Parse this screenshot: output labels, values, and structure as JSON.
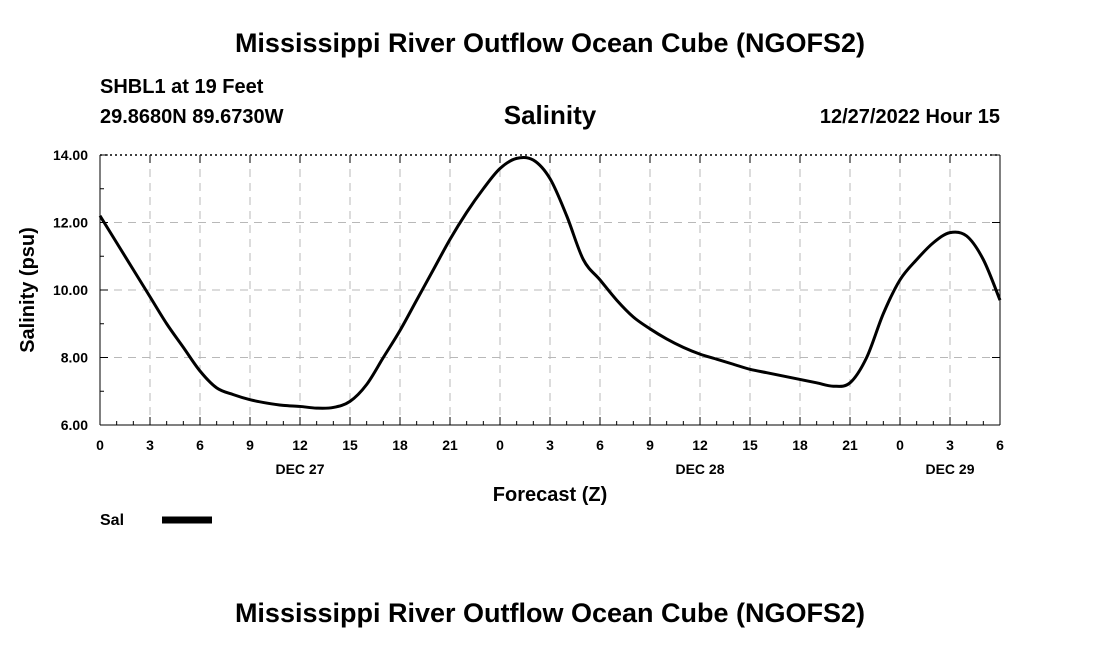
{
  "page": {
    "title": "Mississippi River Outflow Ocean Cube (NGOFS2)",
    "title_repeat": "Mississippi River Outflow Ocean Cube (NGOFS2)",
    "station": "SHBL1 at 19 Feet",
    "coords": "29.8680N  89.6730W",
    "plot_title": "Salinity",
    "timestamp": "12/27/2022 Hour 15"
  },
  "chart_data": {
    "type": "line",
    "title": "Salinity",
    "xlabel": "Forecast (Z)",
    "ylabel": "Salinity (psu)",
    "xlim": [
      0,
      54
    ],
    "ylim": [
      6,
      14
    ],
    "grid": true,
    "x_ticks": [
      0,
      3,
      6,
      9,
      12,
      15,
      18,
      21,
      24,
      27,
      30,
      33,
      36,
      39,
      42,
      45,
      48,
      51,
      54
    ],
    "x_tick_labels": [
      "0",
      "3",
      "6",
      "9",
      "12",
      "15",
      "18",
      "21",
      "0",
      "3",
      "6",
      "9",
      "12",
      "15",
      "18",
      "21",
      "0",
      "3",
      "6"
    ],
    "y_ticks": [
      6,
      8,
      10,
      12,
      14
    ],
    "y_tick_labels": [
      "6.00",
      "8.00",
      "10.00",
      "12.00",
      "14.00"
    ],
    "date_labels": [
      {
        "x": 12,
        "label": "DEC 27"
      },
      {
        "x": 36,
        "label": "DEC 28"
      },
      {
        "x": 51,
        "label": "DEC 29"
      }
    ],
    "legend": {
      "position": "bottom-left",
      "entries": [
        "Sal"
      ]
    },
    "series": [
      {
        "name": "Sal",
        "x": [
          0,
          1,
          2,
          3,
          4,
          5,
          6,
          7,
          8,
          9,
          10,
          11,
          12,
          13,
          14,
          15,
          16,
          17,
          18,
          19,
          20,
          21,
          22,
          23,
          24,
          25,
          26,
          27,
          28,
          29,
          30,
          31,
          32,
          33,
          34,
          35,
          36,
          37,
          38,
          39,
          40,
          41,
          42,
          43,
          44,
          45,
          46,
          47,
          48,
          49,
          50,
          51,
          52,
          53,
          54
        ],
        "values": [
          12.2,
          11.4,
          10.6,
          9.8,
          9.0,
          8.3,
          7.6,
          7.1,
          6.9,
          6.75,
          6.65,
          6.58,
          6.55,
          6.5,
          6.52,
          6.7,
          7.2,
          8.0,
          8.8,
          9.7,
          10.6,
          11.5,
          12.3,
          13.0,
          13.6,
          13.9,
          13.85,
          13.3,
          12.2,
          10.9,
          10.3,
          9.7,
          9.2,
          8.85,
          8.55,
          8.3,
          8.1,
          7.95,
          7.8,
          7.65,
          7.55,
          7.45,
          7.35,
          7.25,
          7.15,
          7.25,
          8.0,
          9.3,
          10.3,
          10.9,
          11.4,
          11.7,
          11.6,
          10.9,
          9.7
        ]
      }
    ]
  }
}
